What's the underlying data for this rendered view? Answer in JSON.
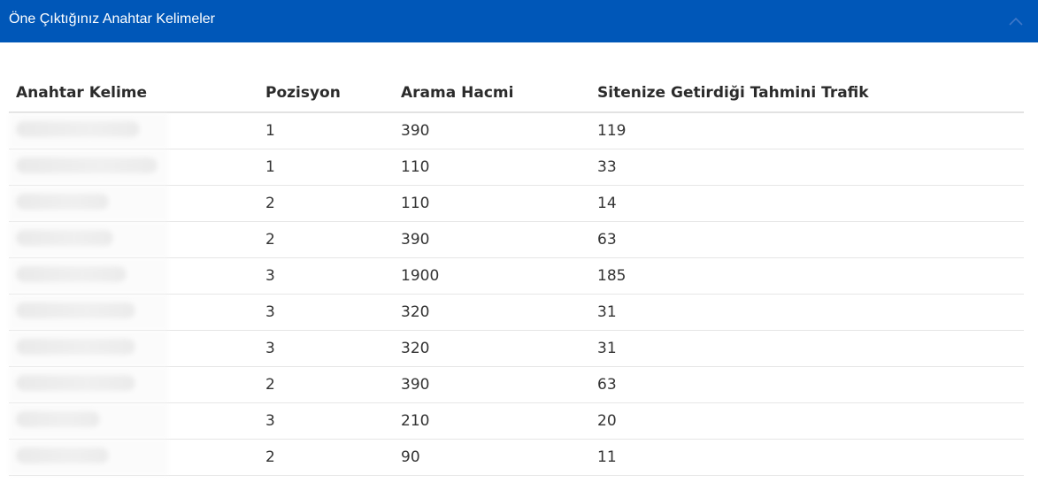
{
  "panel": {
    "title": "Öne Çıktığınız Anahtar Kelimeler"
  },
  "table": {
    "headers": [
      "Anahtar Kelime",
      "Pozisyon",
      "Arama Hacmi",
      "Sitenize Getirdiği Tahmini Trafik"
    ],
    "rows": [
      {
        "position": "1",
        "volume": "390",
        "traffic": "119"
      },
      {
        "position": "1",
        "volume": "110",
        "traffic": "33"
      },
      {
        "position": "2",
        "volume": "110",
        "traffic": "14"
      },
      {
        "position": "2",
        "volume": "390",
        "traffic": "63"
      },
      {
        "position": "3",
        "volume": "1900",
        "traffic": "185"
      },
      {
        "position": "3",
        "volume": "320",
        "traffic": "31"
      },
      {
        "position": "3",
        "volume": "320",
        "traffic": "31"
      },
      {
        "position": "2",
        "volume": "390",
        "traffic": "63"
      },
      {
        "position": "3",
        "volume": "210",
        "traffic": "20"
      },
      {
        "position": "2",
        "volume": "90",
        "traffic": "11"
      }
    ]
  },
  "colors": {
    "header_bg": "#0057b8",
    "header_text": "#ffffff"
  },
  "icons": {
    "collapse": "chevron-up-icon"
  }
}
